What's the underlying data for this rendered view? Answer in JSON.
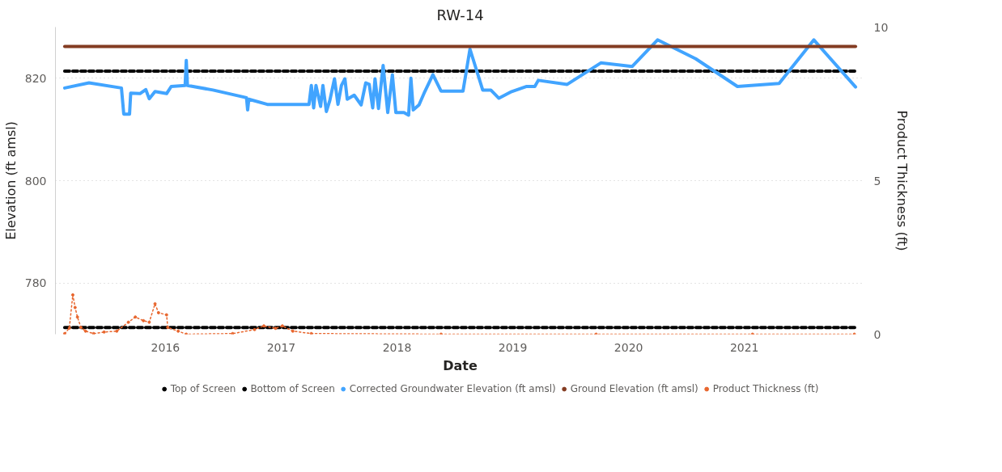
{
  "chart_data": {
    "type": "line",
    "title": "RW-14",
    "xlabel": "Date",
    "ylabel": "Elevation (ft amsl)",
    "y2label": "Product Thickness (ft)",
    "xlim": [
      2015.05,
      2022.04
    ],
    "xticks": [
      2016,
      2017,
      2018,
      2019,
      2020,
      2021
    ],
    "ylim": [
      770,
      830
    ],
    "yticks": [
      780,
      800,
      820
    ],
    "y2lim": [
      0,
      10
    ],
    "y2ticks": [
      0,
      5,
      10
    ],
    "grid": "y",
    "legend": "bottom",
    "marker": "none",
    "line_style": "solid",
    "series": [
      {
        "name": "Top of Screen",
        "color": "#000000",
        "line_style": "dashed",
        "x": [
          2015.13,
          2021.96
        ],
        "values": [
          821.4,
          821.4
        ]
      },
      {
        "name": "Bottom of Screen",
        "color": "#000000",
        "line_style": "dashed",
        "x": [
          2015.13,
          2021.96
        ],
        "values": [
          771.3,
          771.3
        ]
      },
      {
        "name": "Corrected Groundwater Elevation (ft amsl)",
        "color": "#41a4ff",
        "x": [
          2015.13,
          2015.34,
          2015.62,
          2015.64,
          2015.69,
          2015.7,
          2015.78,
          2015.83,
          2015.86,
          2015.91,
          2016.01,
          2016.05,
          2016.17,
          2016.18,
          2016.19,
          2016.41,
          2016.7,
          2016.71,
          2016.72,
          2016.88,
          2017.24,
          2017.26,
          2017.28,
          2017.3,
          2017.34,
          2017.36,
          2017.39,
          2017.42,
          2017.46,
          2017.49,
          2017.52,
          2017.55,
          2017.57,
          2017.63,
          2017.69,
          2017.73,
          2017.76,
          2017.79,
          2017.81,
          2017.84,
          2017.88,
          2017.92,
          2017.96,
          2017.99,
          2018.06,
          2018.1,
          2018.12,
          2018.14,
          2018.19,
          2018.24,
          2018.31,
          2018.38,
          2018.57,
          2018.63,
          2018.74,
          2018.81,
          2018.88,
          2018.99,
          2019.12,
          2019.19,
          2019.22,
          2019.47,
          2019.76,
          2020.03,
          2020.25,
          2020.58,
          2020.94,
          2021.3,
          2021.6,
          2021.96
        ],
        "values": [
          818.1,
          819.1,
          818.1,
          813.0,
          813.0,
          817.1,
          817.0,
          817.8,
          816.0,
          817.4,
          817.0,
          818.4,
          818.6,
          823.5,
          818.6,
          817.7,
          816.2,
          813.8,
          815.9,
          814.9,
          814.9,
          818.6,
          814.2,
          818.6,
          814.5,
          818.6,
          813.5,
          815.7,
          819.9,
          814.9,
          818.6,
          819.9,
          815.9,
          816.7,
          814.8,
          819.1,
          818.8,
          814.2,
          819.9,
          814.1,
          822.5,
          813.3,
          820.7,
          813.3,
          813.3,
          812.8,
          820.0,
          813.8,
          814.8,
          817.4,
          820.7,
          817.5,
          817.5,
          825.7,
          817.7,
          817.7,
          816.1,
          817.4,
          818.4,
          818.4,
          819.6,
          818.8,
          823.0,
          822.3,
          827.5,
          823.8,
          818.4,
          819.0,
          827.5,
          818.3
        ]
      },
      {
        "name": "Ground Elevation (ft amsl)",
        "color": "#843c22",
        "x": [
          2015.13,
          2021.96
        ],
        "values": [
          826.2,
          826.2
        ]
      },
      {
        "name": "Product Thickness (ft)",
        "color": "#e8662e",
        "axis": "y2",
        "marker": "circle",
        "line_style": "dotted",
        "x": [
          2015.13,
          2015.17,
          2015.2,
          2015.22,
          2015.24,
          2015.27,
          2015.31,
          2015.38,
          2015.47,
          2015.58,
          2015.68,
          2015.74,
          2015.81,
          2015.86,
          2015.91,
          2015.94,
          2016.01,
          2016.02,
          2016.11,
          2016.18,
          2016.58,
          2016.77,
          2016.85,
          2016.95,
          2017.01,
          2017.1,
          2017.26,
          2018.38,
          2019.72,
          2021.07,
          2021.95
        ],
        "values": [
          0.02,
          0.2,
          1.28,
          0.87,
          0.56,
          0.22,
          0.1,
          0.02,
          0.07,
          0.1,
          0.39,
          0.56,
          0.44,
          0.39,
          0.99,
          0.7,
          0.63,
          0.22,
          0.1,
          0,
          0.02,
          0.15,
          0.27,
          0.19,
          0.27,
          0.1,
          0.02,
          0,
          0,
          0,
          0
        ]
      }
    ]
  }
}
